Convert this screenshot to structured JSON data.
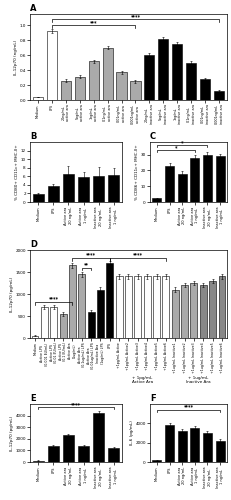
{
  "chart_data": [
    {
      "type": "bar",
      "title": "A",
      "ylabel": "IL-12p70 (ng/mL)",
      "ylim": [
        0,
        1.15
      ],
      "yticks": [
        0.0,
        0.2,
        0.4,
        0.6,
        0.8,
        1.0
      ],
      "categories": [
        "Medium",
        "LPS",
        "20ng/mL\nactive ara",
        "5ng/mL\nactive ara",
        "1ng/mL\nactive ara",
        "0.1ng/mL\nactive ara",
        "0.01ng/mL\nactive ara",
        "0.001ng/mL\nactive ara",
        "20ng/mL\ninactive ara",
        "5ng/mL\ninactive ara",
        "1ng/mL\ninactive ara",
        "0.1ng/mL\ninactive ara",
        "0.01ng/mL\ninactive ara",
        "0.001ng/mL\ninactive ara"
      ],
      "values": [
        0.04,
        0.92,
        0.26,
        0.31,
        0.52,
        0.7,
        0.37,
        0.25,
        0.6,
        0.82,
        0.75,
        0.5,
        0.28,
        0.12
      ],
      "errors": [
        0.005,
        0.03,
        0.02,
        0.02,
        0.02,
        0.02,
        0.02,
        0.02,
        0.03,
        0.02,
        0.02,
        0.02,
        0.02,
        0.015
      ],
      "colors": [
        "white",
        "white",
        "#aaaaaa",
        "#aaaaaa",
        "#aaaaaa",
        "#aaaaaa",
        "#aaaaaa",
        "#aaaaaa",
        "black",
        "black",
        "black",
        "black",
        "black",
        "black"
      ],
      "annotations": [
        {
          "text": "***",
          "from": "LPS",
          "to": "0.001ng/mL\nactive ara",
          "y": 1.0
        },
        {
          "text": "****",
          "from": "LPS",
          "to": "0.001ng/mL\ninactive ara",
          "y": 1.08
        }
      ]
    },
    {
      "type": "bar",
      "title": "B",
      "ylabel": "% CD80+ CD11c+ MHC-II+",
      "ylim": [
        0,
        14
      ],
      "yticks": [
        0,
        2,
        4,
        6,
        8,
        10,
        12
      ],
      "categories": [
        "Medium",
        "LPS",
        "Active ara\n20 ng/mL",
        "Active ara\n1 ng/mL",
        "Inactive ara\n20 ng/mL",
        "Inactive ara\n1 ng/mL"
      ],
      "values": [
        1.8,
        3.8,
        6.5,
        5.8,
        6.0,
        6.3
      ],
      "errors": [
        0.3,
        0.5,
        1.8,
        1.2,
        2.2,
        1.6
      ],
      "colors": [
        "black",
        "black",
        "black",
        "black",
        "black",
        "black"
      ]
    },
    {
      "type": "bar",
      "title": "C",
      "ylabel": "% CD86+ CD11c+ MHC-II+",
      "ylim": [
        0,
        38
      ],
      "yticks": [
        0,
        10,
        20,
        30
      ],
      "categories": [
        "Medium",
        "LPS",
        "Active ara\n20 ng/mL",
        "Active ara\n1 ng/mL",
        "Inactive ara\n20 ng/mL",
        "Inactive ara\n1 ng/mL"
      ],
      "values": [
        2.5,
        23.0,
        18.0,
        28.0,
        30.0,
        29.0
      ],
      "errors": [
        0.3,
        2.0,
        1.5,
        1.5,
        1.5,
        1.5
      ],
      "colors": [
        "black",
        "black",
        "black",
        "black",
        "black",
        "black"
      ],
      "annotations": [
        {
          "text": "*",
          "from": "Medium",
          "to": "Active ara\n1 ng/mL",
          "y": 33
        },
        {
          "text": "*",
          "from": "Medium",
          "to": "Inactive ara\n20 ng/mL",
          "y": 36
        }
      ]
    },
    {
      "type": "bar",
      "title": "D",
      "ylabel": "IL-12p70 (pg/mL)",
      "ylim": [
        0,
        2000
      ],
      "yticks": [
        0,
        500,
        1000,
        1500,
        2000
      ],
      "categories": [
        "Medium",
        "Active LPS\n(0.001 EU/mL)",
        "Active LPS\n(0.01 EU/mL)",
        "Active LPS\n(0.1 EU/mL)",
        "Active Ara\n(1ug/mL)",
        "Active Ara\n(0.1ug/mL) LPS",
        "Active Ara\n(0.01ug/mL) LPS",
        "Inactive Ara\n(1ug/mL) LPS",
        "LPS",
        "+1pg/mL Active",
        "+1pg/mL Active2",
        "+1pg/mL Active3",
        "+1pg/mL Active4",
        "+1pg/mL Active5",
        "+1pg/mL Active6",
        "+1ug/mL Inactive1",
        "+1ug/mL Inactive2",
        "+1ug/mL Inactive3",
        "+1ug/mL Inactive4",
        "+1ug/mL Inactive5",
        "+1ug/mL Inactive6"
      ],
      "values": [
        50,
        700,
        700,
        550,
        1650,
        1450,
        600,
        1100,
        1700,
        1400,
        1400,
        1400,
        1400,
        1400,
        1400,
        1100,
        1200,
        1250,
        1200,
        1300,
        1400
      ],
      "errors": [
        10,
        40,
        40,
        40,
        60,
        60,
        40,
        60,
        60,
        50,
        50,
        50,
        50,
        50,
        50,
        50,
        50,
        50,
        50,
        50,
        60
      ],
      "colors": [
        "white",
        "white",
        "white",
        "#aaaaaa",
        "#aaaaaa",
        "#aaaaaa",
        "black",
        "black",
        "black",
        "white",
        "white",
        "white",
        "white",
        "white",
        "white",
        "#aaaaaa",
        "#aaaaaa",
        "#aaaaaa",
        "#888888",
        "#888888",
        "#888888"
      ],
      "annotations": [
        {
          "text": "****",
          "from": "Medium",
          "to": "Active Ara\n(1ug/mL)",
          "y": 820
        },
        {
          "text": "****",
          "from": "Active Ara\n(1ug/mL)",
          "to": "LPS",
          "y": 1820
        },
        {
          "text": "****",
          "from": "LPS",
          "to": "+1pg/mL Active6",
          "y": 1820
        },
        {
          "text": "**",
          "from": "Active Ara\n(0.1ug/mL) LPS",
          "to": "Active Ara\n(0.01ug/mL) LPS",
          "y": 1600
        },
        {
          "text": "+ 1pg/mL\nActive Ara",
          "from": "+1pg/mL Active",
          "to": "+1pg/mL Active6"
        },
        {
          "text": "+ 1ug/mL\nInactive Ara",
          "from": "+1ug/mL Inactive1",
          "to": "+1ug/mL Inactive6"
        }
      ]
    },
    {
      "type": "bar",
      "title": "E",
      "ylabel": "IL-12p70 (pg/mL)",
      "ylim": [
        0,
        5000
      ],
      "yticks": [
        0,
        1000,
        2000,
        3000,
        4000
      ],
      "categories": [
        "Medium",
        "LPS",
        "Active ara\n20 ng/mL",
        "Active ara\n1 ng/mL",
        "Inactive ara\n20 ng/mL",
        "Inactive ara\n1 ng/mL"
      ],
      "values": [
        100,
        1400,
        2300,
        1400,
        4200,
        1200
      ],
      "errors": [
        30,
        100,
        150,
        100,
        200,
        100
      ],
      "colors": [
        "black",
        "black",
        "black",
        "black",
        "black",
        "black"
      ],
      "annotations": [
        {
          "text": "****",
          "from": "Medium",
          "to": "Inactive ara\n1 ng/mL",
          "y": 4700
        }
      ]
    },
    {
      "type": "bar",
      "title": "F",
      "ylabel": "IL-6 (pg/mL)",
      "ylim": [
        0,
        6000
      ],
      "yticks": [
        0,
        2000,
        4000
      ],
      "categories": [
        "Medium",
        "LPS",
        "Active ara\n20 ng/mL",
        "Active ara\n1 ng/mL",
        "Inactive ara\n20 ng/mL",
        "Inactive ara\n1 ng/mL"
      ],
      "values": [
        200,
        3800,
        3200,
        3500,
        3000,
        2200
      ],
      "errors": [
        50,
        200,
        200,
        200,
        200,
        150
      ],
      "colors": [
        "black",
        "black",
        "black",
        "black",
        "black",
        "black"
      ],
      "annotations": [
        {
          "text": "****",
          "from": "Medium",
          "to": "Inactive ara\n1 ng/mL",
          "y": 5400
        }
      ]
    }
  ]
}
